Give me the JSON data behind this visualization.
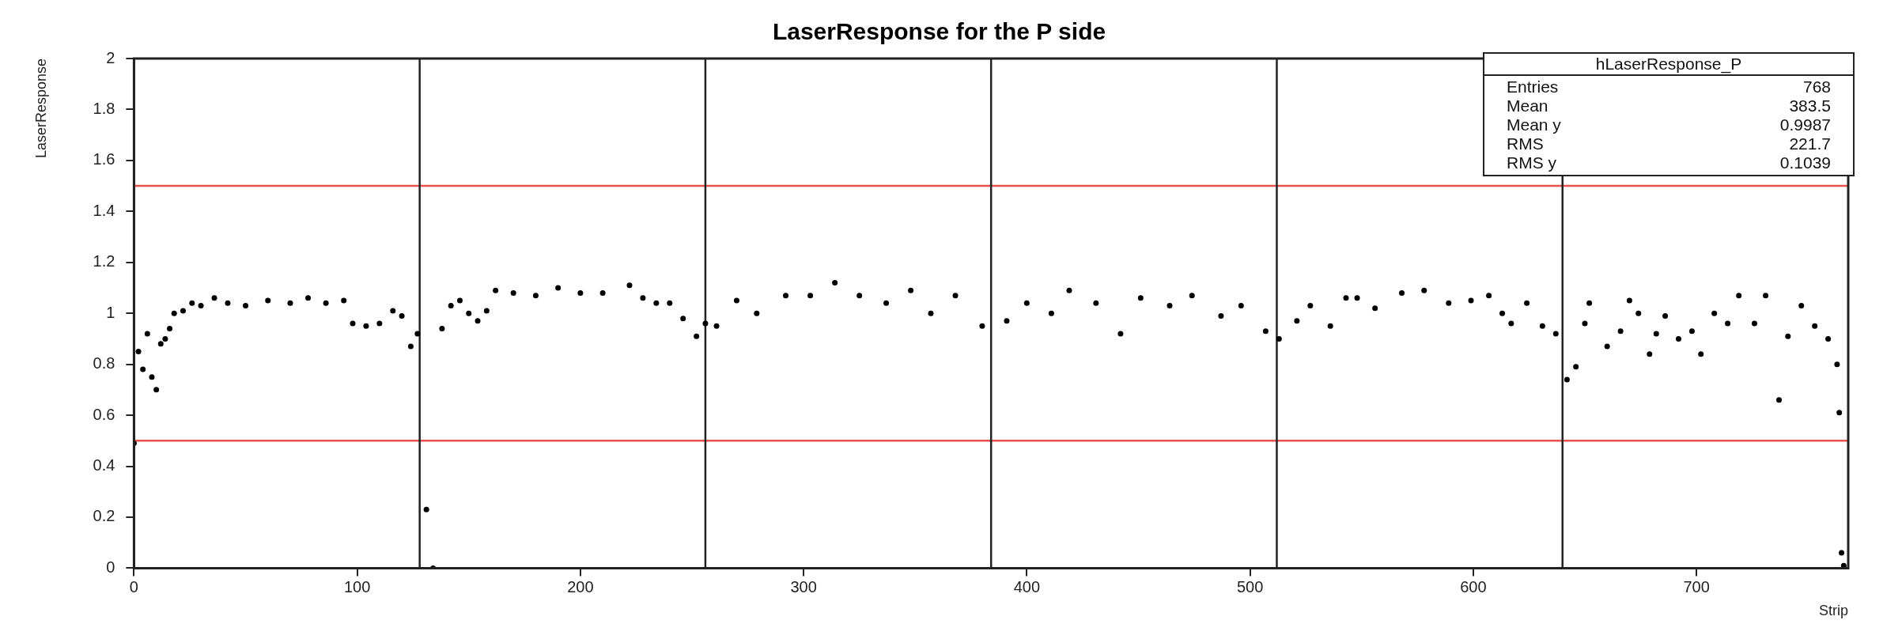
{
  "chart_data": {
    "type": "scatter",
    "title": "LaserResponse for the P side",
    "xlabel": "Strip",
    "ylabel": "LaserResponse",
    "x": [
      0,
      2,
      4,
      6,
      8,
      10,
      12,
      14,
      16,
      18,
      22,
      26,
      30,
      36,
      42,
      50,
      60,
      70,
      78,
      86,
      94,
      98,
      104,
      110,
      116,
      120,
      124,
      127,
      131,
      134,
      138,
      142,
      146,
      150,
      154,
      158,
      162,
      170,
      180,
      190,
      200,
      210,
      222,
      228,
      234,
      240,
      246,
      252,
      256,
      261,
      270,
      279,
      292,
      303,
      314,
      325,
      337,
      348,
      357,
      368,
      380,
      391,
      400,
      411,
      419,
      431,
      442,
      451,
      464,
      474,
      487,
      496,
      507,
      513,
      521,
      527,
      536,
      543,
      548,
      556,
      568,
      578,
      589,
      599,
      607,
      613,
      617,
      624,
      631,
      637,
      642,
      646,
      650,
      652,
      660,
      666,
      670,
      674,
      679,
      682,
      686,
      692,
      698,
      702,
      708,
      714,
      719,
      726,
      731,
      737,
      741,
      747,
      753,
      759,
      763,
      764,
      765,
      766
    ],
    "series": [
      {
        "color": "#000000",
        "values": [
          0.49,
          0.85,
          0.78,
          0.92,
          0.75,
          0.7,
          0.88,
          0.9,
          0.94,
          1.0,
          1.01,
          1.04,
          1.03,
          1.06,
          1.04,
          1.03,
          1.05,
          1.04,
          1.06,
          1.04,
          1.05,
          0.96,
          0.95,
          0.96,
          1.01,
          0.99,
          0.87,
          0.92,
          0.23,
          0.0,
          0.94,
          1.03,
          1.05,
          1.0,
          0.97,
          1.01,
          1.09,
          1.08,
          1.07,
          1.1,
          1.08,
          1.08,
          1.11,
          1.06,
          1.04,
          1.04,
          0.98,
          0.91,
          0.96,
          0.95,
          1.05,
          1.0,
          1.07,
          1.07,
          1.12,
          1.07,
          1.04,
          1.09,
          1.0,
          1.07,
          0.95,
          0.97,
          1.04,
          1.0,
          1.09,
          1.04,
          0.92,
          1.06,
          1.03,
          1.07,
          0.99,
          1.03,
          0.93,
          0.9,
          0.97,
          1.03,
          0.95,
          1.06,
          1.06,
          1.02,
          1.08,
          1.09,
          1.04,
          1.05,
          1.07,
          1.0,
          0.96,
          1.04,
          0.95,
          0.92,
          0.74,
          0.79,
          0.96,
          1.04,
          0.87,
          0.93,
          1.05,
          1.0,
          0.84,
          0.92,
          0.99,
          0.9,
          0.93,
          0.84,
          1.0,
          0.96,
          1.07,
          0.96,
          1.07,
          0.66,
          0.91,
          1.03,
          0.95,
          0.9,
          0.8,
          0.61,
          0.06,
          0.01
        ]
      }
    ],
    "xlim": [
      0,
      768
    ],
    "xticks": [
      0,
      100,
      200,
      300,
      400,
      500,
      600,
      700
    ],
    "ylim": [
      0,
      2
    ],
    "yticks": [
      0,
      {
        "value": 0.2,
        "label": "0.2"
      },
      {
        "value": 0.4,
        "label": "0.4"
      },
      {
        "value": 0.6,
        "label": "0.6"
      },
      {
        "value": 0.8,
        "label": "0.8"
      },
      1,
      {
        "value": 1.2,
        "label": "1.2"
      },
      {
        "value": 1.4,
        "label": "1.4"
      },
      {
        "value": 1.6,
        "label": "1.6"
      },
      {
        "value": 1.8,
        "label": "1.8"
      },
      2
    ],
    "marker": "circle",
    "legend": false,
    "grid": false,
    "ref_lines": [
      {
        "axis": "y",
        "value": 1.5,
        "color": "#e8534f"
      },
      {
        "axis": "y",
        "value": 0.5,
        "color": "#e8534f"
      },
      {
        "axis": "x",
        "value": 128,
        "color": "#222222"
      },
      {
        "axis": "x",
        "value": 256,
        "color": "#222222"
      },
      {
        "axis": "x",
        "value": 384,
        "color": "#222222"
      },
      {
        "axis": "x",
        "value": 512,
        "color": "#222222"
      },
      {
        "axis": "x",
        "value": 640,
        "color": "#222222"
      }
    ],
    "annotations": [
      "hLaserResponse_P",
      "Entries",
      "768",
      "Mean",
      "383.5",
      "Mean y",
      "0.9987",
      "RMS",
      "221.7",
      "RMS y",
      "0.1039"
    ]
  }
}
